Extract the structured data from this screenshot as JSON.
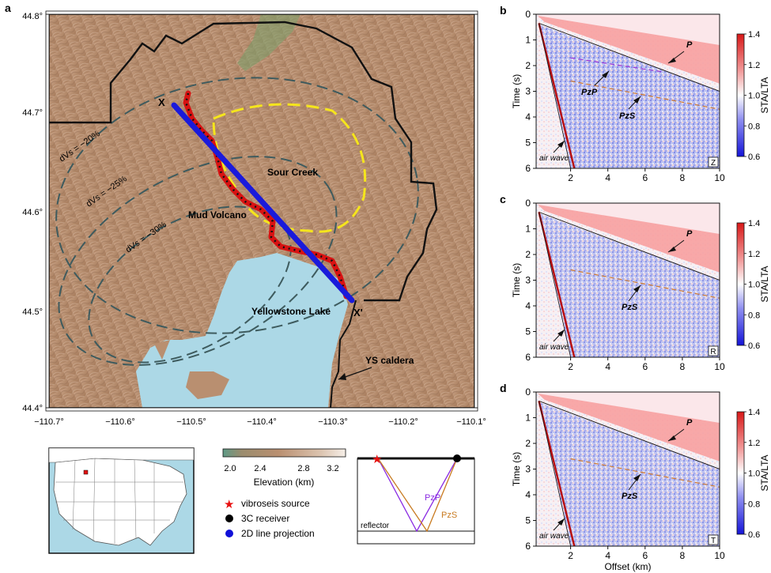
{
  "panel_labels": {
    "a": "a",
    "b": "b",
    "c": "c",
    "d": "d"
  },
  "map": {
    "lat_ticks": [
      "44.8°",
      "44.7°",
      "44.6°",
      "44.5°",
      "44.4°"
    ],
    "lon_ticks": [
      "−110.7°",
      "−110.6°",
      "−110.5°",
      "−110.4°",
      "−110.3°",
      "−110.2°",
      "−110.1°"
    ],
    "place_labels": {
      "sour_creek": "Sour Creek",
      "mud_volcano": "Mud Volcano",
      "yellowstone_lake": "Yellowstone Lake",
      "ys_caldera": "YS caldera",
      "x_start": "X",
      "x_end": "X'"
    },
    "contour_labels": [
      "dVs = −20%",
      "dVs = −25%",
      "dVs = −30%"
    ],
    "colors": {
      "lake": "#acd8e6",
      "terrain": "#b98f70",
      "line": "#1a1adb",
      "source": "#e01010"
    }
  },
  "elevation_bar": {
    "ticks": [
      "2.0",
      "2.4",
      "2.8",
      "3.2"
    ],
    "title": "Elevation (km)"
  },
  "legend": [
    {
      "symbol": "star",
      "color": "#e81010",
      "label": "vibroseis source"
    },
    {
      "symbol": "circle",
      "color": "#000000",
      "label": "3C receiver"
    },
    {
      "symbol": "circle",
      "color": "#1010d8",
      "label": "2D line projection"
    }
  ],
  "schematic": {
    "pzp": "PzP",
    "pzs": "PzS",
    "reflector": "reflector"
  },
  "seismic_panels": [
    {
      "component": "Z",
      "labels": {
        "p": "P",
        "pzp": "PzP",
        "pzs": "PzS",
        "air": "air wave"
      }
    },
    {
      "component": "R",
      "labels": {
        "p": "P",
        "pzs": "PzS",
        "air": "air wave"
      }
    },
    {
      "component": "T",
      "labels": {
        "p": "P",
        "pzs": "PzS",
        "air": "air wave"
      }
    }
  ],
  "seismic_axes": {
    "ylabel": "Time (s)",
    "xlabel": "Offset (km)",
    "yticks": [
      "0",
      "1",
      "2",
      "3",
      "4",
      "5",
      "6"
    ],
    "xticks": [
      "2",
      "4",
      "6",
      "8",
      "10"
    ],
    "colorbar_label": "STA/LTA",
    "colorbar_ticks": [
      "1.4",
      "1.2",
      "1.0",
      "0.8",
      "0.6"
    ]
  }
}
